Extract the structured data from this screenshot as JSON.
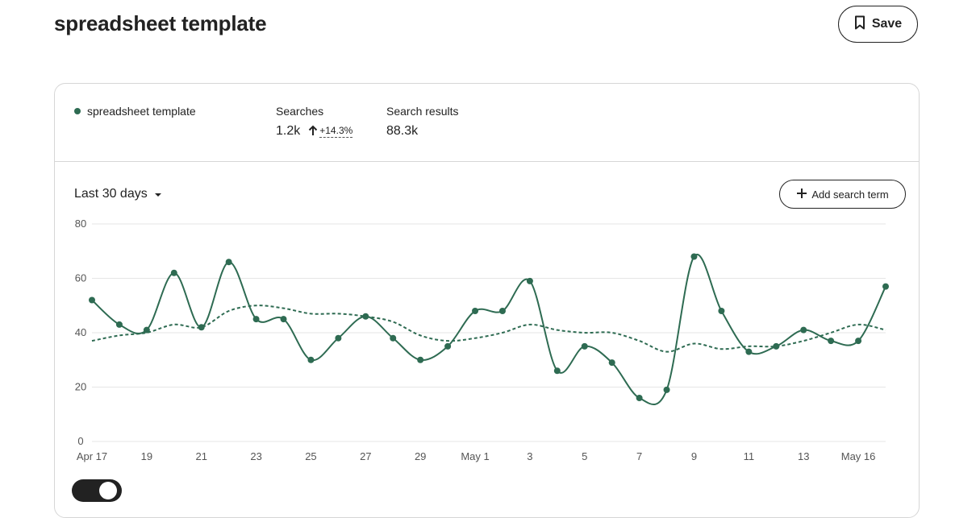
{
  "page": {
    "title": "spreadsheet template",
    "save_label": "Save"
  },
  "summary": {
    "term": "spreadsheet template",
    "searches_label": "Searches",
    "searches_value": "1.2k",
    "searches_change": "+14.3%",
    "results_label": "Search results",
    "results_value": "88.3k"
  },
  "controls": {
    "range_label": "Last 30 days",
    "add_term_label": "Add search term"
  },
  "colors": {
    "series": "#2e6b52",
    "grid": "#e6e6e6",
    "text": "#222222"
  },
  "icons": [
    "bookmark-icon",
    "arrow-up-icon",
    "caret-down-icon",
    "plus-icon"
  ],
  "chart_data": {
    "type": "line",
    "x": [
      "Apr 17",
      "Apr 18",
      "Apr 19",
      "Apr 20",
      "Apr 21",
      "Apr 22",
      "Apr 23",
      "Apr 24",
      "Apr 25",
      "Apr 26",
      "Apr 27",
      "Apr 28",
      "Apr 29",
      "Apr 30",
      "May 1",
      "May 2",
      "May 3",
      "May 4",
      "May 5",
      "May 6",
      "May 7",
      "May 8",
      "May 9",
      "May 10",
      "May 11",
      "May 12",
      "May 13",
      "May 14",
      "May 15",
      "May 16"
    ],
    "x_tick_labels": [
      "Apr 17",
      "19",
      "21",
      "23",
      "25",
      "27",
      "29",
      "May 1",
      "3",
      "5",
      "7",
      "9",
      "11",
      "13",
      "May 16"
    ],
    "y_ticks": [
      0,
      20,
      40,
      60,
      80
    ],
    "ylim": [
      0,
      80
    ],
    "grid": true,
    "series": [
      {
        "style": "solid-with-markers",
        "values": [
          52,
          43,
          41,
          62,
          42,
          66,
          45,
          45,
          30,
          38,
          46,
          38,
          30,
          35,
          48,
          48,
          59,
          26,
          35,
          29,
          16,
          19,
          68,
          48,
          33,
          35,
          41,
          37,
          37,
          57
        ]
      },
      {
        "style": "dashed",
        "values": [
          37,
          39,
          40,
          43,
          42,
          48,
          50,
          49,
          47,
          47,
          46,
          44,
          39,
          37,
          38,
          40,
          43,
          41,
          40,
          40,
          37,
          33,
          36,
          34,
          35,
          35,
          37,
          40,
          43,
          41
        ]
      }
    ]
  }
}
